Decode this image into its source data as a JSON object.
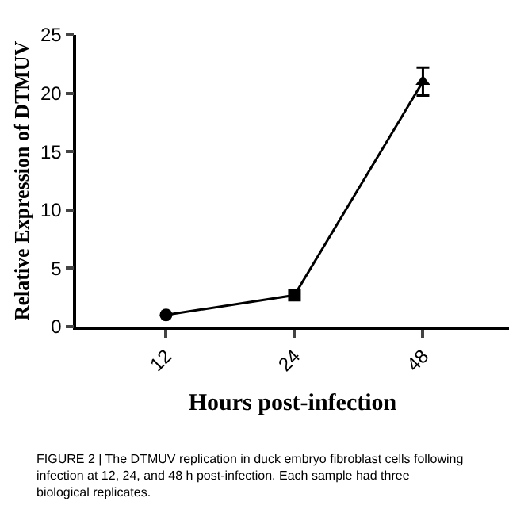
{
  "chart_data": {
    "type": "line",
    "xlabel": "Hours post-infection",
    "ylabel": "Relative Expression of DTMUV",
    "categories": [
      "12",
      "24",
      "48"
    ],
    "series": [
      {
        "color": "#000000",
        "values": [
          1.0,
          2.7,
          21
        ],
        "marker": "none"
      },
      {
        "type": "scatter",
        "color": "#000000",
        "values": [
          1.0,
          null,
          null
        ],
        "marker": "circle"
      },
      {
        "type": "scatter",
        "color": "#000000",
        "values": [
          null,
          2.7,
          null
        ],
        "marker": "square"
      },
      {
        "type": "scatter",
        "color": "#000000",
        "values": [
          null,
          null,
          21
        ],
        "marker": "triangle",
        "errors": [
          null,
          null,
          1.2
        ]
      }
    ],
    "ylim": [
      0,
      25
    ],
    "yticks": [
      0,
      5,
      10,
      15,
      20,
      25
    ],
    "annotations": [
      "FIGURE 2 | The DTMUV replication in duck embryo fibroblast cells following infection at 12, 24, and 48 h post-infection. Each sample had three biological replicates."
    ]
  }
}
